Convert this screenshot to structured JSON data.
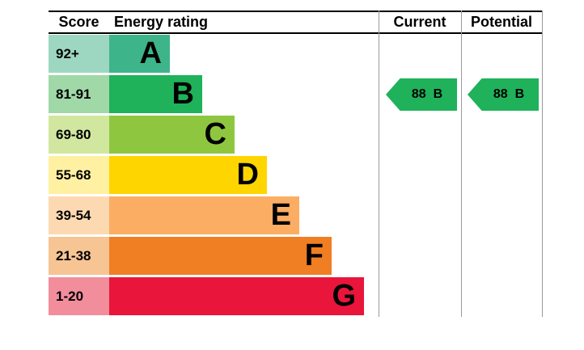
{
  "header": {
    "score": "Score",
    "rating": "Energy rating",
    "current": "Current",
    "potential": "Potential"
  },
  "chart_data": {
    "type": "bar",
    "subtype": "epc-energy-rating",
    "title": "Energy rating",
    "columns": [
      "Score",
      "Energy rating",
      "Current",
      "Potential"
    ],
    "bands": [
      {
        "score": "92+",
        "letter": "A",
        "color": "#3eb48a",
        "tint": "#9ed7c1"
      },
      {
        "score": "81-91",
        "letter": "B",
        "color": "#1fb25a",
        "tint": "#a0d8a8"
      },
      {
        "score": "69-80",
        "letter": "C",
        "color": "#8ec73f",
        "tint": "#d1e7a0"
      },
      {
        "score": "55-68",
        "letter": "D",
        "color": "#ffd500",
        "tint": "#fff1a1"
      },
      {
        "score": "39-54",
        "letter": "E",
        "color": "#fbad63",
        "tint": "#fdd9b2"
      },
      {
        "score": "21-38",
        "letter": "F",
        "color": "#f07e22",
        "tint": "#f7c494"
      },
      {
        "score": "1-20",
        "letter": "G",
        "color": "#e9153b",
        "tint": "#f28d9c"
      }
    ],
    "current": {
      "value": "88",
      "letter": "B",
      "color": "#1fb25a"
    },
    "potential": {
      "value": "88",
      "letter": "B",
      "color": "#1fb25a"
    }
  }
}
